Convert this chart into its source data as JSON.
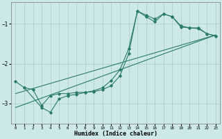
{
  "title": "",
  "xlabel": "Humidex (Indice chaleur)",
  "ylabel": "",
  "bg_color": "#cce8e8",
  "grid_color": "#aacccc",
  "line_color": "#2a7a6a",
  "xlim": [
    -0.5,
    23.5
  ],
  "ylim": [
    -3.5,
    -0.45
  ],
  "yticks": [
    -3,
    -2,
    -1
  ],
  "xticks": [
    0,
    1,
    2,
    3,
    4,
    5,
    6,
    7,
    8,
    9,
    10,
    11,
    12,
    13,
    14,
    15,
    16,
    17,
    18,
    19,
    20,
    21,
    22,
    23
  ],
  "line1_x": [
    0,
    1,
    2,
    3,
    4,
    5,
    6,
    7,
    8,
    9,
    10,
    11,
    12,
    13,
    14,
    15,
    16,
    17,
    18,
    19,
    20,
    21,
    22,
    23
  ],
  "line1_y": [
    -2.45,
    -2.6,
    -2.65,
    -3.05,
    -2.8,
    -2.75,
    -2.75,
    -2.72,
    -2.72,
    -2.7,
    -2.65,
    -2.55,
    -2.3,
    -1.75,
    -0.68,
    -0.78,
    -0.88,
    -0.75,
    -0.82,
    -1.05,
    -1.1,
    -1.1,
    -1.25,
    -1.3
  ],
  "line2_x": [
    1,
    3,
    4,
    5,
    6,
    7,
    8,
    9,
    10,
    11,
    12,
    13,
    14,
    15,
    16,
    17,
    18,
    19,
    20,
    21,
    22,
    23
  ],
  "line2_y": [
    -2.6,
    -3.1,
    -3.22,
    -2.88,
    -2.8,
    -2.77,
    -2.72,
    -2.68,
    -2.6,
    -2.42,
    -2.15,
    -1.62,
    -0.68,
    -0.82,
    -0.95,
    -0.75,
    -0.82,
    -1.08,
    -1.1,
    -1.12,
    -1.25,
    -1.3
  ],
  "line3_x": [
    0,
    23
  ],
  "line3_y": [
    -2.75,
    -1.28
  ],
  "line4_x": [
    0,
    23
  ],
  "line4_y": [
    -3.1,
    -1.28
  ]
}
